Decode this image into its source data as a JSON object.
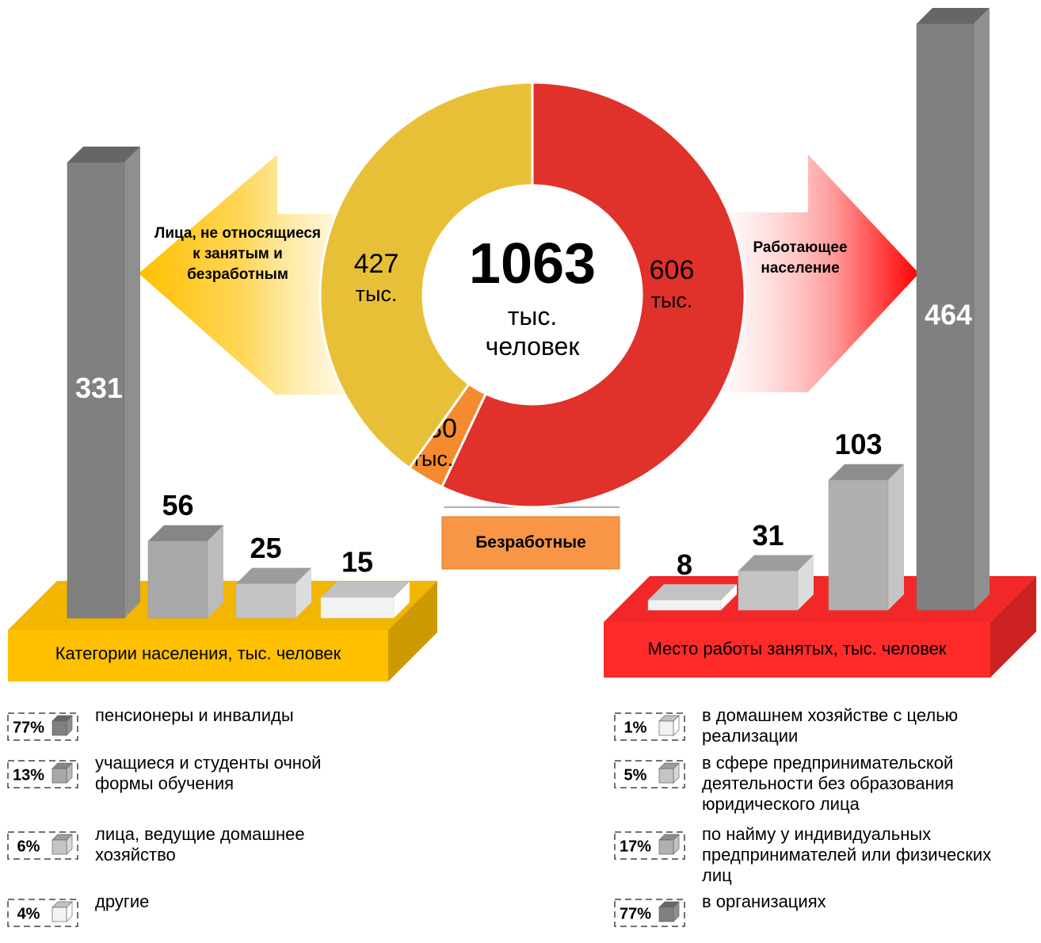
{
  "chart_data": [
    {
      "type": "pie",
      "categories": [
        "Работающее население",
        "Безработные",
        "Лица, не относящиеся к занятым и безработным"
      ],
      "values": [
        606,
        30,
        427
      ],
      "colors": [
        "#e0312a",
        "#f58a2e",
        "#e8c037"
      ],
      "unit": "тыс.",
      "total": 1063,
      "total_unit": "тыс. человек"
    },
    {
      "type": "bar",
      "title": "Категории населения, тыс. человек",
      "categories": [
        "пенсионеры и инвалиды",
        "учащиеся и студенты очной формы обучения",
        "лица, ведущие домашнее хозяйство",
        "другие"
      ],
      "values": [
        331,
        56,
        25,
        15
      ],
      "colors": [
        "#808080",
        "#a8a8a8",
        "#c4c4c4",
        "#f2f2f2"
      ],
      "shares": [
        77,
        13,
        6,
        4
      ],
      "share_labels": [
        "77%",
        "13%",
        "6%",
        "4%"
      ],
      "platform_color": "#ffc000"
    },
    {
      "type": "bar",
      "title": "Место работы занятых, тыс. человек",
      "categories": [
        "в домашнем хозяйстве с целью реализации",
        "в сфере предпринимательской деятельности без образования юридического лица",
        "по найму у индивидуальных предпринимателей или физических лиц",
        "в организациях"
      ],
      "values": [
        8,
        31,
        103,
        464
      ],
      "colors": [
        "#f2f2f2",
        "#c4c4c4",
        "#b0b0b0",
        "#808080"
      ],
      "shares": [
        1,
        5,
        17,
        77
      ],
      "share_labels": [
        "1%",
        "5%",
        "17%",
        "77%"
      ],
      "platform_color": "#ff2a2a"
    }
  ]
}
